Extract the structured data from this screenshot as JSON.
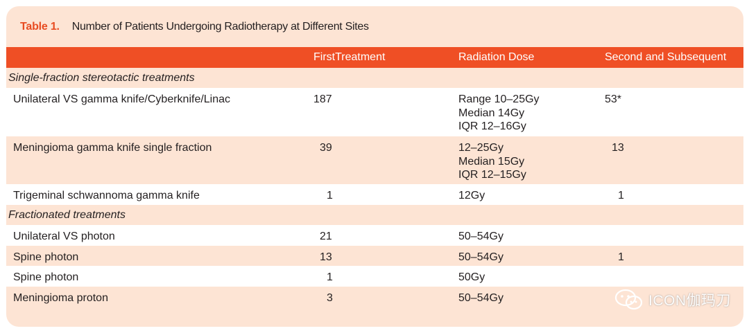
{
  "table": {
    "label": "Table 1.",
    "title": "Number of Patients Undergoing Radiotherapy at Different Sites",
    "columns": [
      "",
      "FirstTreatment",
      "Radiation Dose",
      "Second and Subsequent"
    ],
    "sections": [
      {
        "label": "Single-fraction stereotactic treatments",
        "rows": [
          {
            "site": "Unilateral VS gamma knife/Cyberknife/Linac",
            "first": "187",
            "dose": [
              "Range 10–25Gy",
              "Median 14Gy",
              "IQR 12–16Gy"
            ],
            "second": "53*"
          },
          {
            "site": "Meningioma gamma knife single fraction",
            "first": "39",
            "dose": [
              "12–25Gy",
              "Median 15Gy",
              "IQR 12–15Gy"
            ],
            "second": "13"
          },
          {
            "site": "Trigeminal schwannoma gamma knife",
            "first": "1",
            "dose": [
              "12Gy"
            ],
            "second": "1"
          }
        ]
      },
      {
        "label": "Fractionated treatments",
        "rows": [
          {
            "site": "Unilateral VS photon",
            "first": "21",
            "dose": [
              "50–54Gy"
            ],
            "second": ""
          },
          {
            "site": "Spine photon",
            "first": "13",
            "dose": [
              "50–54Gy"
            ],
            "second": "1"
          },
          {
            "site": "Spine photon",
            "first": "1",
            "dose": [
              "50Gy"
            ],
            "second": ""
          },
          {
            "site": "Meningioma proton",
            "first": "3",
            "dose": [
              "50–54Gy"
            ],
            "second": ""
          }
        ]
      }
    ]
  },
  "watermark": {
    "text": "ICON伽玛刀",
    "icon": "wechat-icon"
  },
  "colors": {
    "accent": "#ef4f25",
    "label": "#e84c22",
    "tint": "#fde4d4",
    "white": "#ffffff"
  }
}
